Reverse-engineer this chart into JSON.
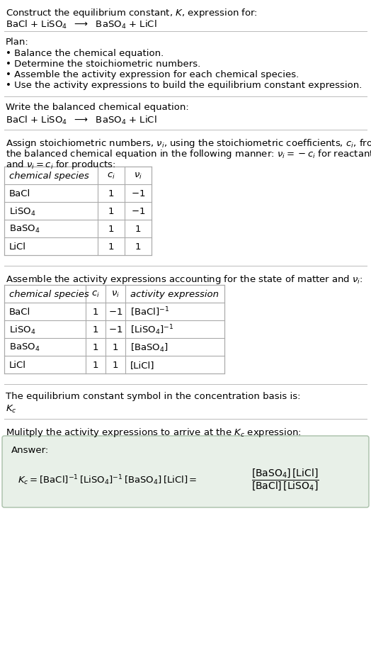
{
  "title_line1": "Construct the equilibrium constant, $K$, expression for:",
  "title_line2": "BaCl + LiSO$_4$  $\\longrightarrow$  BaSO$_4$ + LiCl",
  "plan_header": "Plan:",
  "plan_bullets": [
    "• Balance the chemical equation.",
    "• Determine the stoichiometric numbers.",
    "• Assemble the activity expression for each chemical species.",
    "• Use the activity expressions to build the equilibrium constant expression."
  ],
  "balanced_header": "Write the balanced chemical equation:",
  "balanced_eq": "BaCl + LiSO$_4$  $\\longrightarrow$  BaSO$_4$ + LiCl",
  "stoich_intro_1": "Assign stoichiometric numbers, $\\nu_i$, using the stoichiometric coefficients, $c_i$, from",
  "stoich_intro_2": "the balanced chemical equation in the following manner: $\\nu_i = -c_i$ for reactants",
  "stoich_intro_3": "and $\\nu_i = c_i$ for products:",
  "table1_headers": [
    "chemical species",
    "$c_i$",
    "$\\nu_i$"
  ],
  "table1_rows": [
    [
      "BaCl",
      "1",
      "$-1$"
    ],
    [
      "LiSO$_4$",
      "1",
      "$-1$"
    ],
    [
      "BaSO$_4$",
      "1",
      "1"
    ],
    [
      "LiCl",
      "1",
      "1"
    ]
  ],
  "activity_intro": "Assemble the activity expressions accounting for the state of matter and $\\nu_i$:",
  "table2_headers": [
    "chemical species",
    "$c_i$",
    "$\\nu_i$",
    "activity expression"
  ],
  "table2_rows": [
    [
      "BaCl",
      "1",
      "$-1$",
      "[BaCl]$^{-1}$"
    ],
    [
      "LiSO$_4$",
      "1",
      "$-1$",
      "[LiSO$_4$]$^{-1}$"
    ],
    [
      "BaSO$_4$",
      "1",
      "1",
      "[BaSO$_4$]"
    ],
    [
      "LiCl",
      "1",
      "1",
      "[LiCl]"
    ]
  ],
  "kc_text": "The equilibrium constant symbol in the concentration basis is:",
  "kc_symbol": "$K_c$",
  "multiply_text": "Mulitply the activity expressions to arrive at the $K_c$ expression:",
  "answer_label": "Answer:",
  "answer_box_color": "#e8f0e8",
  "answer_box_border": "#a8bfa8",
  "bg_color": "#ffffff",
  "text_color": "#000000",
  "table_line_color": "#aaaaaa",
  "separator_color": "#bbbbbb",
  "font_size": 9.5,
  "small_font_size": 9.5
}
